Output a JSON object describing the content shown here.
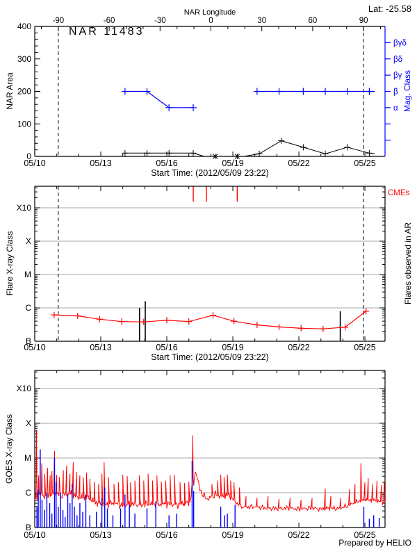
{
  "page": {
    "lat": "Lat: -25.58",
    "prepared_by": "Prepared by HELIO"
  },
  "colors": {
    "series_black": "#000000",
    "series_red": "#ff0000",
    "series_blue": "#0000ff",
    "gridline": "#aaaaaa",
    "background": "#ffffff"
  },
  "chart_data": [
    {
      "type": "line",
      "title": "NAR 11483",
      "ylabel": "NAR Area",
      "xlabel": "Start Time: (2012/05/09 23:22)",
      "ylim": [
        0,
        400
      ],
      "y_ticks": [
        0,
        100,
        200,
        300,
        400
      ],
      "x_range_days": [
        0,
        15.92
      ],
      "x_tick_days": [
        0,
        3,
        6,
        9,
        12,
        15
      ],
      "x_tick_labels": [
        "05/10",
        "05/13",
        "05/16",
        "05/19",
        "05/22",
        "05/25"
      ],
      "top_axis": {
        "label": "NAR Longitude",
        "tick_values": [
          -90,
          -60,
          -30,
          0,
          30,
          60,
          90
        ],
        "tick_labels": [
          "-90",
          "-60",
          "-30",
          "0",
          "30",
          "60",
          "90"
        ]
      },
      "right_axis": {
        "label": "Mag. Class",
        "labeled_ticks": [
          {
            "area": 150,
            "label": "α"
          },
          {
            "area": 200,
            "label": "β"
          },
          {
            "area": 250,
            "label": "βγ"
          },
          {
            "area": 300,
            "label": "βδ"
          },
          {
            "area": 350,
            "label": "βγδ"
          }
        ],
        "minor_tick_areas": [
          50,
          100
        ]
      },
      "disk_limb_days": [
        1.07,
        14.94
      ],
      "series": [
        {
          "name": "NAR area",
          "color": "#000000",
          "points": [
            [
              4.1,
              10
            ],
            [
              5.1,
              10
            ],
            [
              6.1,
              10
            ],
            [
              7.2,
              10
            ],
            [
              7.7,
              0
            ],
            [
              8.2,
              0
            ],
            [
              9.2,
              0
            ],
            [
              9.5,
              0
            ],
            [
              10.2,
              8
            ],
            [
              11.2,
              48
            ],
            [
              12.2,
              28
            ],
            [
              13.2,
              8
            ],
            [
              14.2,
              28
            ],
            [
              15.2,
              10
            ],
            [
              15.45,
              8
            ]
          ],
          "markers_plus": [
            [
              4.1,
              10
            ],
            [
              5.1,
              10
            ],
            [
              6.1,
              10
            ],
            [
              7.2,
              10
            ],
            [
              10.2,
              8
            ],
            [
              11.2,
              48
            ],
            [
              12.2,
              28
            ],
            [
              13.2,
              8
            ],
            [
              14.2,
              28
            ],
            [
              15.2,
              10
            ]
          ],
          "markers_asterisk": [
            [
              8.2,
              0
            ],
            [
              9.2,
              0
            ]
          ]
        },
        {
          "name": "Magnetic class",
          "color": "#0000ff",
          "axis": "right",
          "segments": [
            [
              [
                4.1,
                200
              ],
              [
                5.1,
                200
              ],
              [
                6.1,
                150
              ],
              [
                7.2,
                150
              ]
            ],
            [
              [
                10.1,
                200
              ],
              [
                11.1,
                200
              ],
              [
                12.2,
                200
              ],
              [
                13.2,
                200
              ],
              [
                14.2,
                200
              ],
              [
                15.2,
                200
              ],
              [
                15.45,
                200
              ]
            ]
          ],
          "markers_plus": [
            [
              4.1,
              200
            ],
            [
              5.1,
              200
            ],
            [
              6.1,
              150
            ],
            [
              7.2,
              150
            ],
            [
              10.1,
              200
            ],
            [
              11.1,
              200
            ],
            [
              12.2,
              200
            ],
            [
              13.2,
              200
            ],
            [
              14.2,
              200
            ],
            [
              15.2,
              200
            ]
          ]
        }
      ]
    },
    {
      "type": "line",
      "ylabel": "Flare X-ray Class",
      "right_label": "Flares observed in AR",
      "cme_label": "CMEs",
      "xlabel": "Start Time: (2012/05/09 23:22)",
      "y_tick_labels": [
        "B",
        "C",
        "M",
        "X",
        "X10"
      ],
      "level_unit": "decades above B1: B=0, C=1, M=2, X=3, X10=4",
      "x_tick_days": [
        0,
        3,
        6,
        9,
        12,
        15
      ],
      "x_tick_labels": [
        "05/10",
        "05/13",
        "05/16",
        "05/19",
        "05/22",
        "05/25"
      ],
      "disk_limb_days": [
        1.07,
        14.94
      ],
      "cme_days": [
        7.2,
        7.8,
        9.2
      ],
      "flare_lines": [
        [
          4.76,
          1.0
        ],
        [
          5.02,
          1.2
        ],
        [
          13.88,
          0.9
        ]
      ],
      "series": [
        {
          "name": "Flare level in AR",
          "color": "#ff0000",
          "points": [
            [
              0.88,
              0.79
            ],
            [
              1.95,
              0.76
            ],
            [
              2.95,
              0.66
            ],
            [
              3.95,
              0.59
            ],
            [
              4.95,
              0.58
            ],
            [
              6.0,
              0.63
            ],
            [
              7.0,
              0.59
            ],
            [
              8.1,
              0.78
            ],
            [
              9.05,
              0.6
            ],
            [
              10.1,
              0.49
            ],
            [
              11.1,
              0.43
            ],
            [
              12.1,
              0.39
            ],
            [
              13.1,
              0.37
            ],
            [
              14.1,
              0.42
            ],
            [
              15.05,
              0.9
            ]
          ]
        }
      ]
    },
    {
      "type": "line",
      "ylabel": "GOES X-ray Class",
      "y_tick_labels": [
        "B",
        "C",
        "M",
        "X",
        "X10"
      ],
      "level_unit": "decades above B1: B=0, C=1, M=2, X=3, X10=4",
      "x_range_days": [
        0,
        15.92
      ],
      "x_tick_days": [
        0,
        3,
        6,
        9,
        12,
        15
      ],
      "x_tick_labels": [
        "05/10",
        "05/13",
        "05/16",
        "05/19",
        "05/22",
        "05/25"
      ],
      "goes_baseline": [
        [
          0,
          0.7
        ],
        [
          0.15,
          1.0
        ],
        [
          0.5,
          0.88
        ],
        [
          0.9,
          1.0
        ],
        [
          1.2,
          0.92
        ],
        [
          1.6,
          0.98
        ],
        [
          2.0,
          0.85
        ],
        [
          2.4,
          0.88
        ],
        [
          2.8,
          0.7
        ],
        [
          3.2,
          0.66
        ],
        [
          3.6,
          0.7
        ],
        [
          4.0,
          0.63
        ],
        [
          4.4,
          0.68
        ],
        [
          4.8,
          0.65
        ],
        [
          5.2,
          0.68
        ],
        [
          5.6,
          0.66
        ],
        [
          6.0,
          0.68
        ],
        [
          6.4,
          0.66
        ],
        [
          6.8,
          0.68
        ],
        [
          7.05,
          0.72
        ],
        [
          7.3,
          1.65
        ],
        [
          7.5,
          1.1
        ],
        [
          7.7,
          0.88
        ],
        [
          7.9,
          0.82
        ],
        [
          8.2,
          0.95
        ],
        [
          8.5,
          0.88
        ],
        [
          8.8,
          0.95
        ],
        [
          9.0,
          0.82
        ],
        [
          9.2,
          0.68
        ],
        [
          9.5,
          0.58
        ],
        [
          10.0,
          0.6
        ],
        [
          10.5,
          0.56
        ],
        [
          11.0,
          0.54
        ],
        [
          11.5,
          0.56
        ],
        [
          12.0,
          0.53
        ],
        [
          12.5,
          0.56
        ],
        [
          13.0,
          0.53
        ],
        [
          13.4,
          0.56
        ],
        [
          13.8,
          0.54
        ],
        [
          14.2,
          0.62
        ],
        [
          14.6,
          0.74
        ],
        [
          15.0,
          0.8
        ],
        [
          15.4,
          0.78
        ],
        [
          15.92,
          0.72
        ]
      ],
      "goes_spikes": [
        [
          0.08,
          2.8
        ],
        [
          0.18,
          1.5
        ],
        [
          0.32,
          1.85
        ],
        [
          0.45,
          1.55
        ],
        [
          0.58,
          1.72
        ],
        [
          0.7,
          1.5
        ],
        [
          0.78,
          1.62
        ],
        [
          0.9,
          2.2
        ],
        [
          1.0,
          1.52
        ],
        [
          1.12,
          1.45
        ],
        [
          1.3,
          1.65
        ],
        [
          1.45,
          1.78
        ],
        [
          1.6,
          1.55
        ],
        [
          1.75,
          1.88
        ],
        [
          1.9,
          1.6
        ],
        [
          2.05,
          1.5
        ],
        [
          2.2,
          1.45
        ],
        [
          2.35,
          1.58
        ],
        [
          2.5,
          1.4
        ],
        [
          2.7,
          1.32
        ],
        [
          2.9,
          1.25
        ],
        [
          3.05,
          1.55
        ],
        [
          3.15,
          1.88
        ],
        [
          3.35,
          1.45
        ],
        [
          3.6,
          1.25
        ],
        [
          3.8,
          1.3
        ],
        [
          4.0,
          1.52
        ],
        [
          4.2,
          1.48
        ],
        [
          4.35,
          1.3
        ],
        [
          4.55,
          1.35
        ],
        [
          4.75,
          1.5
        ],
        [
          4.95,
          1.35
        ],
        [
          5.15,
          1.55
        ],
        [
          5.35,
          1.35
        ],
        [
          5.55,
          1.5
        ],
        [
          5.75,
          1.32
        ],
        [
          5.95,
          1.35
        ],
        [
          6.15,
          1.5
        ],
        [
          6.35,
          1.52
        ],
        [
          6.6,
          1.3
        ],
        [
          6.8,
          1.28
        ],
        [
          7.0,
          1.32
        ],
        [
          7.18,
          2.65
        ],
        [
          8.05,
          1.25
        ],
        [
          8.3,
          1.35
        ],
        [
          8.45,
          1.52
        ],
        [
          8.6,
          1.45
        ],
        [
          8.75,
          1.52
        ],
        [
          8.9,
          1.35
        ],
        [
          9.05,
          1.3
        ],
        [
          9.3,
          1.15
        ],
        [
          9.6,
          0.9
        ],
        [
          10.1,
          0.85
        ],
        [
          10.6,
          0.9
        ],
        [
          11.1,
          0.82
        ],
        [
          11.6,
          0.85
        ],
        [
          12.1,
          0.8
        ],
        [
          12.6,
          0.85
        ],
        [
          13.2,
          1.12
        ],
        [
          13.45,
          0.9
        ],
        [
          13.9,
          0.85
        ],
        [
          14.3,
          1.1
        ],
        [
          14.55,
          1.25
        ],
        [
          14.82,
          1.85
        ],
        [
          15.0,
          1.3
        ],
        [
          15.15,
          1.42
        ],
        [
          15.35,
          1.25
        ],
        [
          15.55,
          1.35
        ],
        [
          15.75,
          1.22
        ],
        [
          15.88,
          1.3
        ]
      ],
      "event_spikes_blue": [
        [
          0.1,
          0.6
        ],
        [
          0.16,
          1.1
        ],
        [
          0.25,
          2.25
        ],
        [
          0.33,
          0.8
        ],
        [
          0.45,
          0.5
        ],
        [
          0.55,
          1.0
        ],
        [
          0.68,
          0.7
        ],
        [
          0.78,
          0.4
        ],
        [
          0.9,
          2.0
        ],
        [
          0.97,
          1.3
        ],
        [
          1.07,
          0.6
        ],
        [
          1.17,
          1.0
        ],
        [
          1.28,
          0.5
        ],
        [
          1.38,
          0.3
        ],
        [
          1.5,
          0.95
        ],
        [
          1.6,
          0.7
        ],
        [
          1.7,
          1.25
        ],
        [
          1.8,
          0.6
        ],
        [
          1.92,
          0.35
        ],
        [
          2.05,
          0.7
        ],
        [
          2.18,
          0.45
        ],
        [
          2.32,
          0.95
        ],
        [
          2.5,
          0.35
        ],
        [
          2.8,
          0.45
        ],
        [
          3.05,
          0.85
        ],
        [
          3.18,
          1.15
        ],
        [
          3.3,
          0.55
        ],
        [
          3.55,
          0.35
        ],
        [
          3.9,
          0.55
        ],
        [
          4.1,
          0.95
        ],
        [
          4.3,
          0.65
        ],
        [
          4.55,
          0.4
        ],
        [
          5.1,
          0.55
        ],
        [
          5.5,
          0.75
        ],
        [
          6.1,
          0.35
        ],
        [
          6.45,
          0.4
        ],
        [
          7.15,
          1.92
        ],
        [
          7.22,
          1.05
        ],
        [
          8.45,
          0.6
        ],
        [
          8.62,
          0.35
        ],
        [
          8.75,
          0.4
        ],
        [
          9.1,
          0.65
        ],
        [
          14.95,
          0.6
        ],
        [
          15.2,
          0.25
        ],
        [
          15.4,
          0.35
        ],
        [
          15.65,
          0.28
        ]
      ]
    }
  ]
}
